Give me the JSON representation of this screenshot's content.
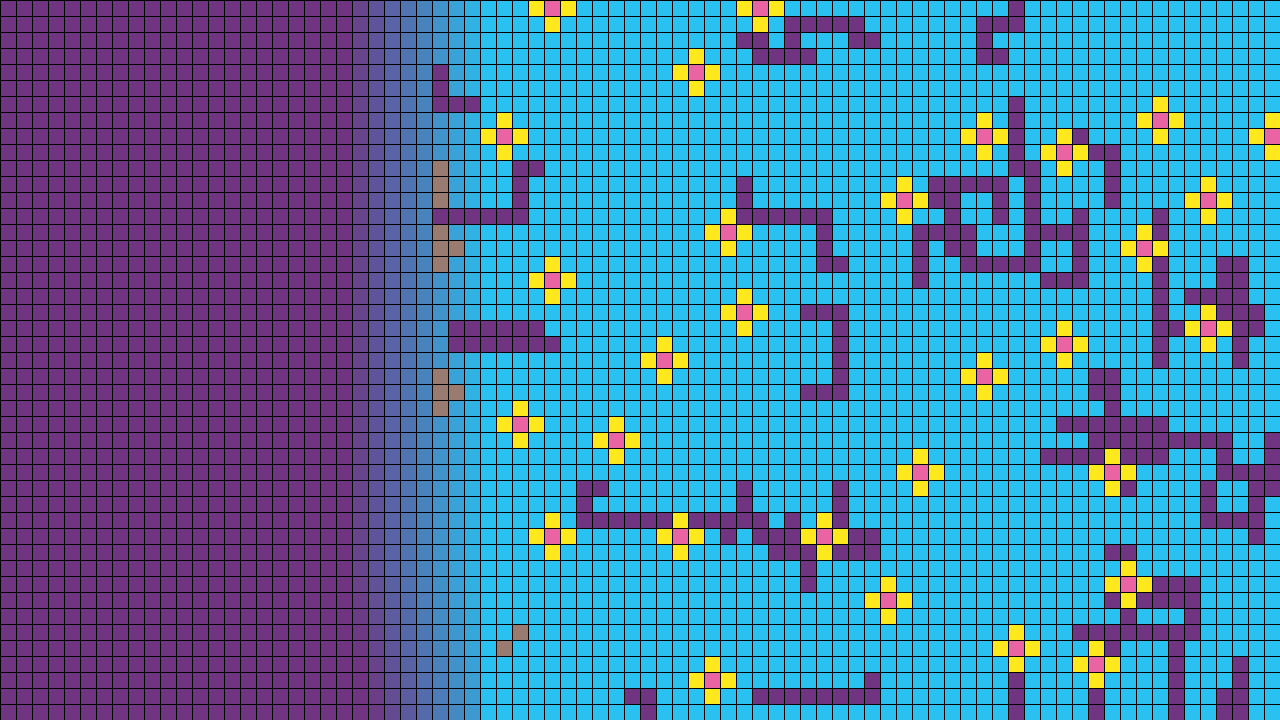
{
  "game": {
    "colors": {
      "void": "#6f3580",
      "water": "#29c2f0",
      "wall": "#6f3580",
      "petal": "#fde91e",
      "flower_center": "#ea64a4",
      "grid_line": "#000000",
      "dirt": "#9a7b70"
    }
  }
}
